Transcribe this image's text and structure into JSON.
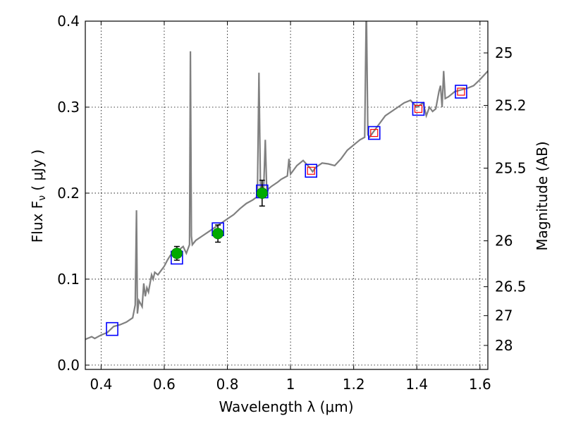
{
  "chart_data": {
    "type": "scatter",
    "xlabel": "Wavelength  λ (μm)",
    "ylabel": "Flux  F",
    "ylabel_sub": "ν",
    "ylabel_unit": " ( μJy )",
    "ylabel_right": "Magnitude (AB)",
    "xlim": [
      0.35,
      1.625
    ],
    "ylim": [
      -0.005,
      0.4
    ],
    "grid": true,
    "x_ticks": [
      0.4,
      0.6,
      0.8,
      1.0,
      1.2,
      1.4,
      1.6
    ],
    "x_tick_labels": [
      "0.4",
      "0.6",
      "0.8",
      "1",
      "1.2",
      "1.4",
      "1.6"
    ],
    "y_ticks": [
      0.0,
      0.1,
      0.2,
      0.3,
      0.4
    ],
    "y_tick_labels": [
      "0.0",
      "0.1",
      "0.2",
      "0.3",
      "0.4"
    ],
    "right_ticks": [
      {
        "label": "25",
        "mag": 25.0
      },
      {
        "label": "25.2",
        "mag": 25.2
      },
      {
        "label": "25.5",
        "mag": 25.5
      },
      {
        "label": "26",
        "mag": 26.0
      },
      {
        "label": "26.5",
        "mag": 26.5
      },
      {
        "label": "27",
        "mag": 27.0
      },
      {
        "label": "28",
        "mag": 28.0
      }
    ],
    "series": [
      {
        "kind": "spectrum",
        "color": "#808080",
        "x": [
          0.35,
          0.37,
          0.38,
          0.4,
          0.42,
          0.44,
          0.46,
          0.48,
          0.5,
          0.508,
          0.512,
          0.515,
          0.52,
          0.53,
          0.535,
          0.54,
          0.545,
          0.55,
          0.56,
          0.565,
          0.57,
          0.58,
          0.59,
          0.6,
          0.61,
          0.62,
          0.63,
          0.64,
          0.65,
          0.66,
          0.67,
          0.68,
          0.683,
          0.686,
          0.689,
          0.7,
          0.72,
          0.74,
          0.76,
          0.78,
          0.8,
          0.82,
          0.84,
          0.86,
          0.88,
          0.895,
          0.9,
          0.905,
          0.91,
          0.915,
          0.92,
          0.925,
          0.93,
          0.94,
          0.96,
          0.97,
          0.98,
          0.99,
          0.995,
          1.0,
          1.02,
          1.04,
          1.06,
          1.07,
          1.08,
          1.1,
          1.12,
          1.14,
          1.16,
          1.18,
          1.2,
          1.22,
          1.235,
          1.24,
          1.245,
          1.25,
          1.26,
          1.28,
          1.3,
          1.32,
          1.34,
          1.36,
          1.38,
          1.4,
          1.42,
          1.43,
          1.44,
          1.45,
          1.46,
          1.47,
          1.475,
          1.48,
          1.485,
          1.49,
          1.5,
          1.52,
          1.54,
          1.56,
          1.58,
          1.6,
          1.625
        ],
        "y": [
          0.03,
          0.033,
          0.031,
          0.035,
          0.038,
          0.045,
          0.047,
          0.05,
          0.055,
          0.07,
          0.18,
          0.06,
          0.075,
          0.068,
          0.095,
          0.08,
          0.09,
          0.085,
          0.105,
          0.1,
          0.108,
          0.105,
          0.11,
          0.115,
          0.122,
          0.128,
          0.13,
          0.133,
          0.135,
          0.138,
          0.13,
          0.14,
          0.365,
          0.15,
          0.14,
          0.145,
          0.15,
          0.155,
          0.16,
          0.165,
          0.17,
          0.175,
          0.182,
          0.188,
          0.192,
          0.196,
          0.34,
          0.2,
          0.21,
          0.205,
          0.262,
          0.2,
          0.205,
          0.208,
          0.213,
          0.216,
          0.218,
          0.22,
          0.24,
          0.222,
          0.232,
          0.238,
          0.23,
          0.225,
          0.23,
          0.235,
          0.234,
          0.232,
          0.24,
          0.25,
          0.256,
          0.262,
          0.265,
          0.42,
          0.268,
          0.265,
          0.27,
          0.28,
          0.29,
          0.295,
          0.3,
          0.305,
          0.308,
          0.3,
          0.305,
          0.29,
          0.3,
          0.295,
          0.298,
          0.318,
          0.325,
          0.3,
          0.342,
          0.31,
          0.312,
          0.318,
          0.32,
          0.322,
          0.325,
          0.332,
          0.342
        ]
      },
      {
        "kind": "model_squares_blue",
        "color": "#0000ff",
        "x": [
          0.435,
          0.64,
          0.77,
          0.91,
          1.065,
          1.265,
          1.405,
          1.54
        ],
        "y": [
          0.042,
          0.125,
          0.158,
          0.202,
          0.226,
          0.27,
          0.298,
          0.318
        ]
      },
      {
        "kind": "model_squares_red",
        "color": "#ff0000",
        "x": [
          1.065,
          1.265,
          1.405,
          1.54
        ],
        "y": [
          0.226,
          0.27,
          0.298,
          0.318
        ]
      },
      {
        "kind": "observed_points",
        "color": "#00aa00",
        "x": [
          0.64,
          0.77,
          0.91
        ],
        "y": [
          0.13,
          0.153,
          0.2
        ],
        "yerr": [
          0.008,
          0.01,
          0.015
        ]
      }
    ]
  }
}
